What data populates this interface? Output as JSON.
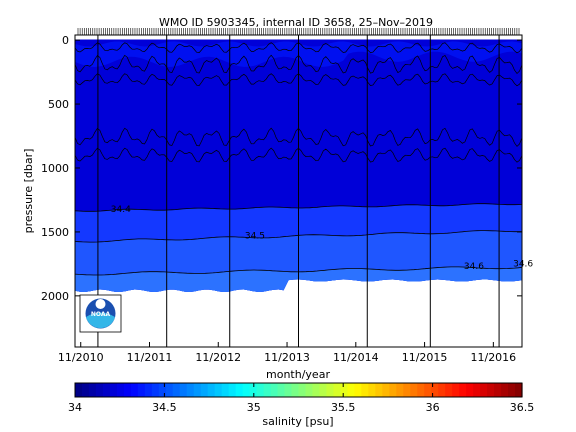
{
  "chart_data": {
    "type": "heatmap",
    "title": "WMO ID 5903345, internal ID 3658, 25–Nov–2019",
    "xlabel": "month/year",
    "ylabel": "pressure [dbar]",
    "x_ticks": [
      "11/2010",
      "11/2011",
      "11/2012",
      "11/2013",
      "11/2014",
      "11/2015",
      "11/2016"
    ],
    "x_tick_dates": [
      "2010-11",
      "2011-11",
      "2012-11",
      "2013-11",
      "2014-11",
      "2015-11",
      "2016-11"
    ],
    "xlim": [
      "2010-10",
      "2017-04"
    ],
    "y_ticks": [
      0,
      500,
      1000,
      1500,
      2000
    ],
    "ylim": [
      2400,
      -40
    ],
    "y_reversed": true,
    "colorbar": {
      "label": "salinity [psu]",
      "range": [
        34,
        36.5
      ],
      "ticks": [
        "34",
        "34.5",
        "35",
        "35.5",
        "36",
        "36.5"
      ],
      "colormap": "jet"
    },
    "contour_labels": [
      "34.4",
      "34.5",
      "34.6",
      "34.6"
    ],
    "salinity_profile": [
      {
        "pressure": 0,
        "salinity": 34.1
      },
      {
        "pressure": 150,
        "salinity": 34.2
      },
      {
        "pressure": 300,
        "salinity": 34.1
      },
      {
        "pressure": 800,
        "salinity": 34.0
      },
      {
        "pressure": 1330,
        "salinity": 34.4
      },
      {
        "pressure": 1560,
        "salinity": 34.5
      },
      {
        "pressure": 1800,
        "salinity": 34.6
      },
      {
        "pressure": 1900,
        "salinity": 34.65
      }
    ],
    "grid": false,
    "logo": "NOAA"
  },
  "colors": {
    "deep_blue": "#0000d8",
    "band_1": "#0010f0",
    "band_2": "#1438ff",
    "band_3": "#1f56ff",
    "band_4": "#2c72ff",
    "band_5": "#3a8aff",
    "white": "#ffffff"
  }
}
